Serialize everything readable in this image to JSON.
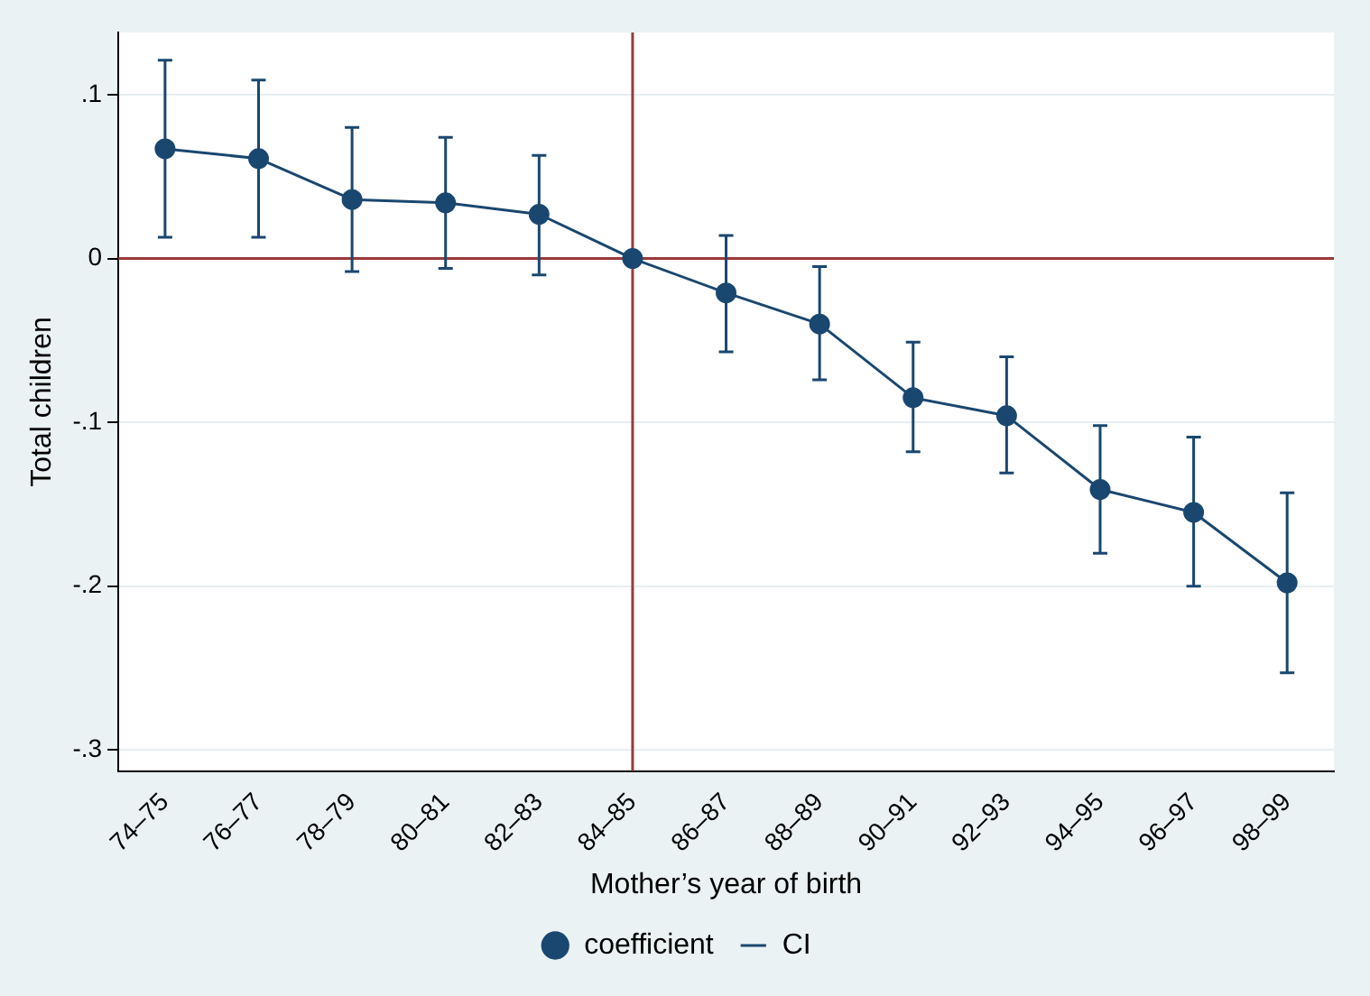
{
  "chart_data": {
    "type": "line",
    "xlabel": "Mother’s year of birth",
    "ylabel": "Total children",
    "categories": [
      "74–75",
      "76–77",
      "78–79",
      "80–81",
      "82–83",
      "84–85",
      "86–87",
      "88–89",
      "90–91",
      "92–93",
      "94–95",
      "96–97",
      "98–99"
    ],
    "ylim": [
      -0.313,
      0.138
    ],
    "yticks": [
      {
        "value": -0.3,
        "label": "-.3"
      },
      {
        "value": -0.2,
        "label": "-.2"
      },
      {
        "value": -0.1,
        "label": "-.1"
      },
      {
        "value": 0,
        "label": "0"
      },
      {
        "value": 0.1,
        "label": ".1"
      }
    ],
    "series": [
      {
        "name": "coefficient",
        "color": "#1a476f",
        "marker": "circle",
        "values": [
          0.067,
          0.061,
          0.036,
          0.034,
          0.027,
          0,
          -0.021,
          -0.04,
          -0.085,
          -0.096,
          -0.141,
          -0.155,
          -0.198
        ],
        "errors": [
          [
            0.013,
            0.121
          ],
          [
            0.013,
            0.109
          ],
          [
            -0.008,
            0.08
          ],
          [
            -0.006,
            0.074
          ],
          [
            -0.01,
            0.063
          ],
          null,
          [
            -0.057,
            0.014
          ],
          [
            -0.074,
            -0.005
          ],
          [
            -0.118,
            -0.051
          ],
          [
            -0.131,
            -0.06
          ],
          [
            -0.18,
            -0.102
          ],
          [
            -0.2,
            -0.109
          ],
          [
            -0.253,
            -0.143
          ]
        ]
      }
    ],
    "annotations": [
      "CI"
    ],
    "ref_lines": [
      {
        "axis": "y",
        "value": 0,
        "color": "#9b3a3a"
      },
      {
        "axis": "x",
        "value": "84–85",
        "color": "#9b3a3a"
      }
    ],
    "grid": "y",
    "legend": "bottom"
  }
}
